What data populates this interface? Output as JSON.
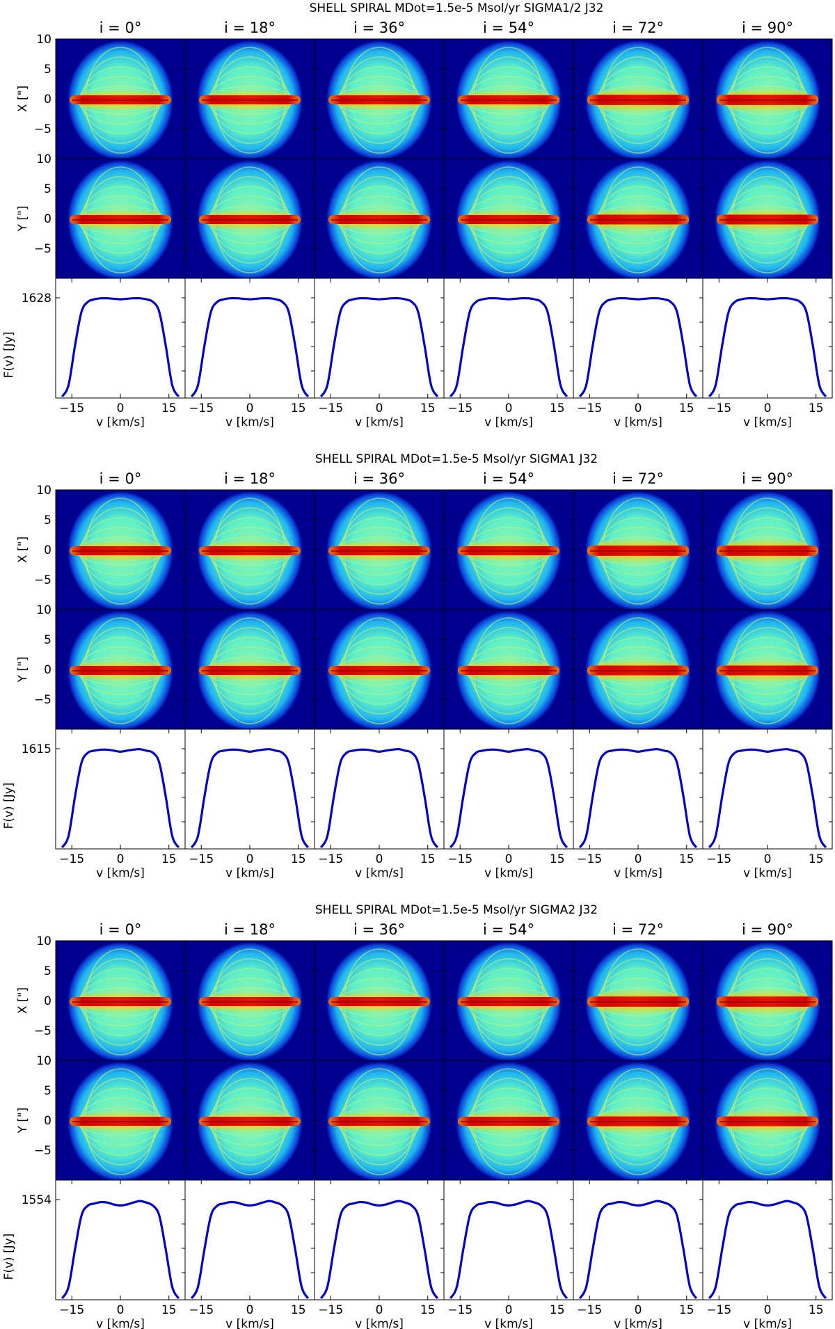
{
  "chart_data": [
    {
      "type": "heatmap",
      "title": "SHELL SPIRAL     MDot=1.5e-5 Msol/yr     SIGMA1/2     J32",
      "inclinations": [
        "i = 0°",
        "i = 18°",
        "i = 36°",
        "i = 54°",
        "i = 72°",
        "i = 90°"
      ],
      "map_rows": [
        "X [\"]",
        "Y [\"]"
      ],
      "map_y_ticks": [
        "10",
        "5",
        "0",
        "−5"
      ],
      "map_range": [
        -10,
        10
      ],
      "profile_ylabel": "F(v) [Jy]",
      "profile_peak_label": "1628",
      "profile_peak_value": 1628,
      "xlabel": "v [km/s]",
      "x_ticks": [
        "−15",
        "0",
        "15"
      ],
      "xlim": [
        -20,
        20
      ],
      "line_profile": {
        "v": [
          -18,
          -16,
          -14,
          -12,
          -10,
          -8,
          -6,
          -4,
          -2,
          0,
          2,
          4,
          6,
          8,
          10,
          12,
          14,
          16,
          18
        ],
        "norm_flux": [
          0,
          0.12,
          0.52,
          0.86,
          0.96,
          0.985,
          0.995,
          0.995,
          0.99,
          0.985,
          0.99,
          0.995,
          0.995,
          0.985,
          0.96,
          0.86,
          0.52,
          0.12,
          0
        ]
      }
    },
    {
      "type": "heatmap",
      "title": "SHELL SPIRAL     MDot=1.5e-5 Msol/yr     SIGMA1     J32",
      "inclinations": [
        "i = 0°",
        "i = 18°",
        "i = 36°",
        "i = 54°",
        "i = 72°",
        "i = 90°"
      ],
      "map_rows": [
        "X [\"]",
        "Y [\"]"
      ],
      "map_y_ticks": [
        "10",
        "5",
        "0",
        "−5"
      ],
      "map_range": [
        -10,
        10
      ],
      "profile_ylabel": "F(v) [Jy]",
      "profile_peak_label": "1615",
      "profile_peak_value": 1615,
      "xlabel": "v [km/s]",
      "x_ticks": [
        "−15",
        "0",
        "15"
      ],
      "xlim": [
        -20,
        20
      ],
      "line_profile": {
        "v": [
          -18,
          -16,
          -14,
          -12,
          -10,
          -8,
          -6,
          -4,
          -2,
          0,
          2,
          4,
          6,
          8,
          10,
          12,
          14,
          16,
          18
        ],
        "norm_flux": [
          0,
          0.12,
          0.52,
          0.86,
          0.96,
          0.98,
          0.99,
          0.99,
          0.98,
          0.97,
          0.98,
          0.99,
          0.995,
          0.98,
          0.96,
          0.86,
          0.52,
          0.12,
          0
        ]
      }
    },
    {
      "type": "heatmap",
      "title": "SHELL SPIRAL     MDot=1.5e-5 Msol/yr     SIGMA2     J32",
      "inclinations": [
        "i = 0°",
        "i = 18°",
        "i = 36°",
        "i = 54°",
        "i = 72°",
        "i = 90°"
      ],
      "map_rows": [
        "X [\"]",
        "Y [\"]"
      ],
      "map_y_ticks": [
        "10",
        "5",
        "0",
        "−5"
      ],
      "map_range": [
        -10,
        10
      ],
      "profile_ylabel": "F(v) [Jy]",
      "profile_peak_label": "1554",
      "profile_peak_value": 1554,
      "xlabel": "v [km/s]",
      "x_ticks": [
        "−15",
        "0",
        "15"
      ],
      "xlim": [
        -20,
        20
      ],
      "line_profile": {
        "v": [
          -18,
          -16,
          -14,
          -12,
          -10,
          -8,
          -6,
          -4,
          -2,
          0,
          2,
          4,
          6,
          8,
          10,
          12,
          14,
          16,
          18
        ],
        "norm_flux": [
          0,
          0.12,
          0.5,
          0.84,
          0.94,
          0.96,
          0.975,
          0.97,
          0.95,
          0.94,
          0.95,
          0.97,
          0.985,
          0.97,
          0.94,
          0.84,
          0.5,
          0.12,
          0
        ]
      }
    }
  ],
  "colors": {
    "map_background": "#00008f",
    "profile_line": "#0000cc",
    "axis": "#000000"
  }
}
